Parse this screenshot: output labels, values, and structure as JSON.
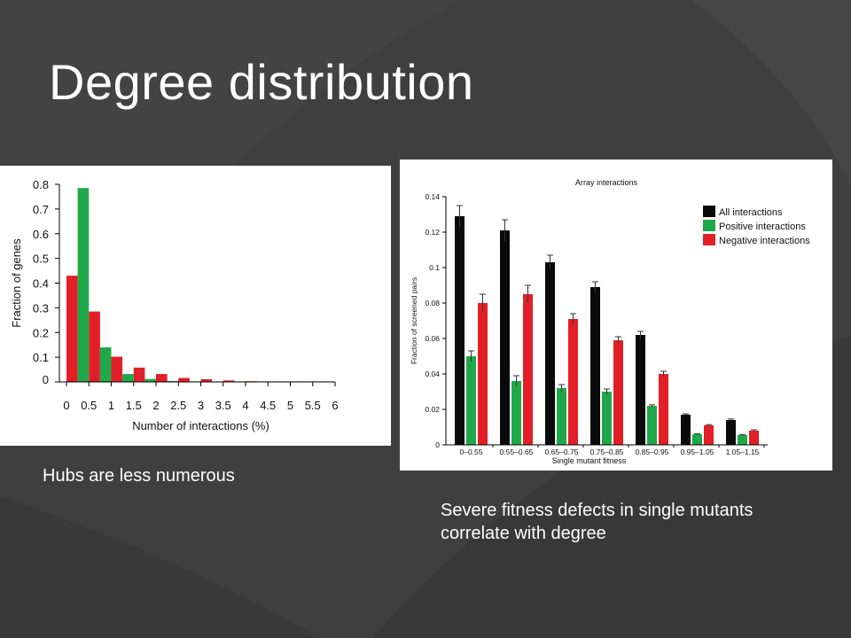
{
  "slide": {
    "title": "Degree distribution",
    "caption_left": "Hubs are less numerous",
    "caption_right": "Severe fitness defects in single mutants correlate with degree",
    "colors": {
      "background": "#3f3f3f",
      "text": "#ffffff"
    }
  },
  "chart_data": [
    {
      "type": "bar",
      "title": "",
      "xlabel": "Number of interactions (%)",
      "ylabel": "Fraction of genes",
      "x_ticks": [
        "0",
        "0.5",
        "1",
        "1.5",
        "2",
        "2.5",
        "3",
        "3.5",
        "4",
        "4.5",
        "5",
        "5.5",
        "6"
      ],
      "y_ticks": [
        "0",
        "0.1",
        "0.2",
        "0.3",
        "0.4",
        "0.5",
        "0.6",
        "0.7",
        "0.8"
      ],
      "xlim": [
        0,
        6
      ],
      "ylim": [
        0,
        0.8
      ],
      "bin_width": 0.25,
      "grid": false,
      "series": [
        {
          "color": "#e21f26",
          "x": [
            0,
            0.5,
            1,
            1.5,
            2,
            2.5,
            3,
            3.5,
            4,
            4.5,
            5,
            5.5
          ],
          "values": [
            0.43,
            0.285,
            0.102,
            0.058,
            0.032,
            0.016,
            0.011,
            0.006,
            0.003,
            0.002,
            0.002,
            0.001
          ]
        },
        {
          "color": "#1fa84a",
          "x": [
            0.25,
            0.75,
            1.25,
            1.75,
            2.25,
            2.75,
            3.25,
            3.75,
            4.25,
            4.75,
            5.25,
            5.75
          ],
          "values": [
            0.785,
            0.14,
            0.032,
            0.012,
            0.004,
            0.002,
            0.001,
            0.001,
            0.001,
            0.001,
            0.0005,
            0.0005
          ]
        }
      ]
    },
    {
      "type": "bar",
      "title": "Array interactions",
      "xlabel": "Single mutant fitness",
      "ylabel": "Fraction of screened pairs",
      "categories": [
        "0–0.55",
        "0.55–0.65",
        "0.65–0.75",
        "0.75–0.85",
        "0.85–0.95",
        "0.95–1.05",
        "1.05–1.15"
      ],
      "y_ticks": [
        "0",
        "0.02",
        "0.04",
        "0.06",
        "0.08",
        "0.1",
        "0.12",
        "0.14"
      ],
      "ylim": [
        0,
        0.14
      ],
      "grid": false,
      "legend_position": "top-right",
      "series": [
        {
          "name": "All interactions",
          "color": "#0a0a0a",
          "values": [
            0.129,
            0.121,
            0.103,
            0.089,
            0.062,
            0.017,
            0.014
          ],
          "errors": [
            0.006,
            0.006,
            0.004,
            0.003,
            0.002,
            0.0005,
            0.0006
          ]
        },
        {
          "name": "Positive interactions",
          "color": "#1fa84a",
          "values": [
            0.05,
            0.036,
            0.032,
            0.03,
            0.022,
            0.006,
            0.0055
          ],
          "errors": [
            0.003,
            0.003,
            0.002,
            0.0015,
            0.0006,
            0.0003,
            0.0003
          ]
        },
        {
          "name": "Negative interactions",
          "color": "#e21f26",
          "values": [
            0.08,
            0.085,
            0.071,
            0.059,
            0.04,
            0.011,
            0.008
          ],
          "errors": [
            0.005,
            0.005,
            0.003,
            0.002,
            0.0015,
            0.0004,
            0.0005
          ]
        }
      ]
    }
  ]
}
